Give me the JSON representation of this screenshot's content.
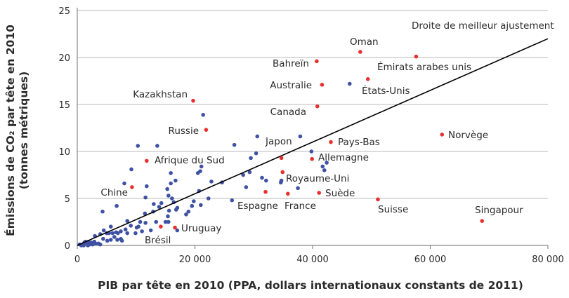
{
  "chart_data": {
    "type": "scatter",
    "title": "",
    "xlabel": "PIB par tête en 2010 (PPA, dollars internationaux constants de 2011)",
    "ylabel_line1": "Émissions de CO₂ par tête en 2010",
    "ylabel_line2": "(tonnes métriques)",
    "xlim": [
      0,
      80000
    ],
    "ylim": [
      0,
      25
    ],
    "x_ticks": [
      "0",
      "20 000",
      "40 000",
      "60 000",
      "80 000"
    ],
    "x_tick_values": [
      0,
      20000,
      40000,
      60000,
      80000
    ],
    "y_ticks": [
      "0",
      "5",
      "10",
      "15",
      "20",
      "25"
    ],
    "y_tick_values": [
      0,
      5,
      10,
      15,
      20,
      25
    ],
    "grid": "horizontal",
    "colors": {
      "highlight": "#e8312f",
      "other": "#3f51a3",
      "trend": "#000000",
      "grid": "#c8c8c8"
    },
    "trend_line": {
      "label": "Droite de meilleur ajustement",
      "from": [
        0,
        0.0
      ],
      "to": [
        80000,
        22.0
      ]
    },
    "highlighted": [
      {
        "name": "Oman",
        "x": 48100,
        "y": 20.6
      },
      {
        "name": "Émirats arabes unis",
        "x": 57600,
        "y": 20.1
      },
      {
        "name": "Bahreïn",
        "x": 40700,
        "y": 19.6
      },
      {
        "name": "Australie",
        "x": 41600,
        "y": 17.1
      },
      {
        "name": "États-Unis",
        "x": 49400,
        "y": 17.7
      },
      {
        "name": "Canada",
        "x": 40800,
        "y": 14.8
      },
      {
        "name": "Kazakhstan",
        "x": 19700,
        "y": 15.4
      },
      {
        "name": "Russie",
        "x": 21900,
        "y": 12.3
      },
      {
        "name": "Afrique du Sud",
        "x": 11800,
        "y": 9.0
      },
      {
        "name": "Chine",
        "x": 9300,
        "y": 6.2
      },
      {
        "name": "Uruguay",
        "x": 16600,
        "y": 1.9
      },
      {
        "name": "Brésil",
        "x": 14200,
        "y": 2.0
      },
      {
        "name": "Japon",
        "x": 34700,
        "y": 9.3
      },
      {
        "name": "Pays-Bas",
        "x": 43100,
        "y": 11.0
      },
      {
        "name": "Allemagne",
        "x": 39900,
        "y": 9.2
      },
      {
        "name": "Royaume-Uni",
        "x": 34900,
        "y": 7.8
      },
      {
        "name": "Espagne",
        "x": 32000,
        "y": 5.7
      },
      {
        "name": "France",
        "x": 35800,
        "y": 5.5
      },
      {
        "name": "Suède",
        "x": 41100,
        "y": 5.6
      },
      {
        "name": "Suisse",
        "x": 51100,
        "y": 4.9
      },
      {
        "name": "Norvège",
        "x": 62000,
        "y": 11.8
      },
      {
        "name": "Singapour",
        "x": 68800,
        "y": 2.6
      }
    ],
    "others": [
      [
        21400,
        13.9
      ],
      [
        26700,
        10.7
      ],
      [
        10300,
        10.6
      ],
      [
        13600,
        10.6
      ],
      [
        9200,
        8.1
      ],
      [
        21100,
        8.4
      ],
      [
        20900,
        7.9
      ],
      [
        20500,
        7.7
      ],
      [
        15900,
        7.7
      ],
      [
        8000,
        6.6
      ],
      [
        16700,
        6.9
      ],
      [
        15900,
        6.6
      ],
      [
        11800,
        6.3
      ],
      [
        15300,
        6.0
      ],
      [
        22800,
        6.8
      ],
      [
        24600,
        6.7
      ],
      [
        20700,
        5.8
      ],
      [
        28200,
        7.5
      ],
      [
        11600,
        5.1
      ],
      [
        15500,
        5.3
      ],
      [
        16100,
        5.0
      ],
      [
        16400,
        4.6
      ],
      [
        22300,
        5.0
      ],
      [
        26300,
        4.8
      ],
      [
        21000,
        4.3
      ],
      [
        19800,
        4.7
      ],
      [
        19500,
        4.2
      ],
      [
        13000,
        4.4
      ],
      [
        14300,
        4.5
      ],
      [
        13900,
        4.1
      ],
      [
        17000,
        4.0
      ],
      [
        16800,
        3.8
      ],
      [
        15600,
        3.7
      ],
      [
        6700,
        4.2
      ],
      [
        4300,
        3.6
      ],
      [
        12900,
        3.6
      ],
      [
        11500,
        3.4
      ],
      [
        18900,
        3.6
      ],
      [
        18500,
        3.3
      ],
      [
        15400,
        3.1
      ],
      [
        15500,
        2.5
      ],
      [
        15000,
        2.5
      ],
      [
        13400,
        2.5
      ],
      [
        8500,
        2.6
      ],
      [
        10700,
        2.5
      ],
      [
        11600,
        2.4
      ],
      [
        5700,
        2.0
      ],
      [
        9100,
        2.1
      ],
      [
        10100,
        1.9
      ],
      [
        10400,
        2.0
      ],
      [
        11000,
        1.5
      ],
      [
        9900,
        1.3
      ],
      [
        8200,
        1.7
      ],
      [
        8500,
        1.3
      ],
      [
        12500,
        1.6
      ],
      [
        17000,
        1.6
      ],
      [
        3000,
        1.0
      ],
      [
        3900,
        1.2
      ],
      [
        4500,
        1.6
      ],
      [
        5000,
        1.3
      ],
      [
        5400,
        1.3
      ],
      [
        6000,
        1.3
      ],
      [
        6600,
        1.4
      ],
      [
        6900,
        1.3
      ],
      [
        7400,
        1.5
      ],
      [
        6300,
        0.9
      ],
      [
        6800,
        0.6
      ],
      [
        7400,
        0.7
      ],
      [
        7600,
        0.5
      ],
      [
        5700,
        0.6
      ],
      [
        5100,
        0.5
      ],
      [
        4400,
        0.7
      ],
      [
        3600,
        0.2
      ],
      [
        3900,
        0.1
      ],
      [
        700,
        0.0
      ],
      [
        1000,
        0.1
      ],
      [
        1200,
        0.3
      ],
      [
        1400,
        0.4
      ],
      [
        1700,
        0.2
      ],
      [
        1900,
        0.4
      ],
      [
        2100,
        0.1
      ],
      [
        2400,
        0.3
      ],
      [
        2600,
        0.1
      ],
      [
        2900,
        0.4
      ],
      [
        3100,
        0.2
      ],
      [
        400,
        0.1
      ],
      [
        1100,
        0.0
      ],
      [
        1800,
        0.0
      ],
      [
        46300,
        17.2
      ],
      [
        30600,
        11.6
      ],
      [
        37900,
        11.6
      ],
      [
        39800,
        10.0
      ],
      [
        30400,
        9.8
      ],
      [
        29500,
        9.3
      ],
      [
        42400,
        8.8
      ],
      [
        41700,
        8.4
      ],
      [
        42000,
        8.0
      ],
      [
        29300,
        7.8
      ],
      [
        31400,
        7.2
      ],
      [
        32100,
        6.9
      ],
      [
        34700,
        6.9
      ],
      [
        34600,
        6.7
      ],
      [
        28700,
        6.2
      ],
      [
        37500,
        6.1
      ]
    ]
  }
}
